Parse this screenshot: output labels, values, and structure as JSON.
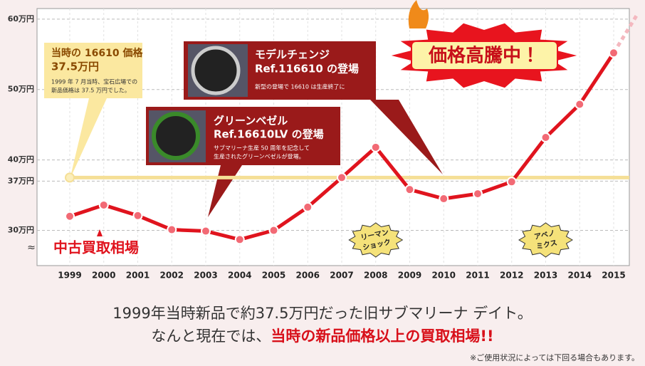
{
  "chart_data": {
    "type": "line",
    "categories": [
      "1999",
      "2000",
      "2001",
      "2002",
      "2003",
      "2004",
      "2005",
      "2006",
      "2007",
      "2008",
      "2009",
      "2010",
      "2011",
      "2012",
      "2013",
      "2014",
      "2015"
    ],
    "series": [
      {
        "name": "中古買取相場",
        "color": "#e0141e",
        "values": [
          32.0,
          33.6,
          32.1,
          30.1,
          29.9,
          28.7,
          30.0,
          33.3,
          37.5,
          41.8,
          35.8,
          34.5,
          35.2,
          36.9,
          43.2,
          47.9,
          55.2
        ]
      }
    ],
    "reference_line": {
      "value": 37.5,
      "color": "#f5df96"
    },
    "ylim": [
      25,
      61.5
    ],
    "yticks": [
      {
        "value": 30,
        "label": "30万円"
      },
      {
        "value": 37,
        "label": "37万円"
      },
      {
        "value": 40,
        "label": "40万円"
      },
      {
        "value": 50,
        "label": "50万円"
      },
      {
        "value": 60,
        "label": "60万円"
      }
    ],
    "grid": true,
    "axis_break": "≈",
    "annotations": {
      "callout_1999": {
        "title": [
          "当時の 16610 価格",
          "37.5万円"
        ],
        "body": [
          "1999 年 7 月当時、宝石広場での",
          "新品価格は 37.5 万円でした。"
        ]
      },
      "callout_model_change": {
        "title": [
          "モデルチェンジ",
          "Ref.116610 の登場"
        ],
        "body": [
          "新型の登場で 16610 は生産終了に"
        ]
      },
      "callout_green_bezel": {
        "title": [
          "グリーンベゼル",
          "Ref.16610LV の登場"
        ],
        "body": [
          "サブマリーナ生産 50 周年を記念して",
          "生産されたグリーンベゼルが登場。"
        ]
      },
      "burst": "価格高騰中！",
      "badge_lehman": [
        "リーマン",
        "ショック"
      ],
      "badge_abenomics": [
        "アベノ",
        "ミクス"
      ]
    }
  },
  "footer": {
    "line1": "1999年当時新品で約37.5万円だった旧サブマリーナ デイト。",
    "line2": [
      "なんと現在では、",
      "当時の新品価格以上の買取相場",
      "!!"
    ],
    "note": "※ご使用状況によっては下回る場合もあります。"
  }
}
